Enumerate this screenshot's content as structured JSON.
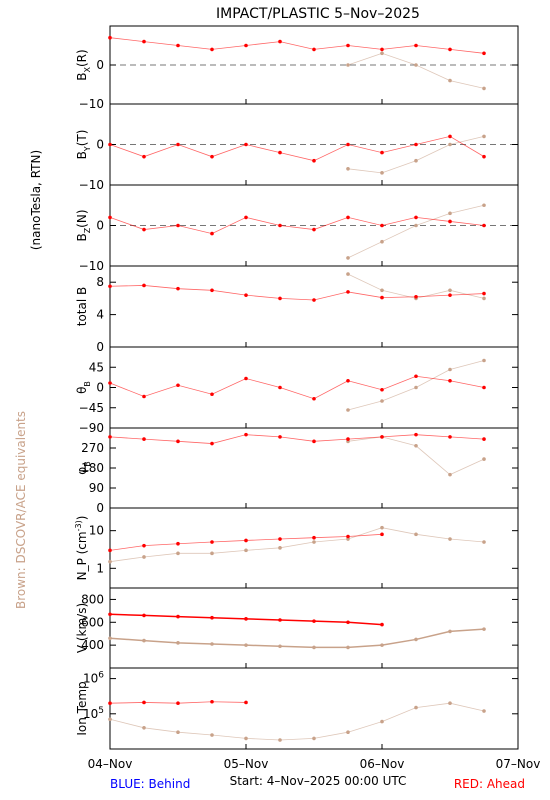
{
  "title": "IMPACT/PLASTIC     5–Nov–2025",
  "left_label": "(nanoTesla, RTN)",
  "side_note": "Brown: DSCOVR/ACE equivalents",
  "footer": {
    "behind": "BLUE: Behind",
    "start": "Start:   4–Nov–2025 00:00 UTC",
    "ahead": "RED: Ahead"
  },
  "colors": {
    "red": "#ff0000",
    "brown": "#c8a28a",
    "blue": "#0000ff",
    "grid_dash": "#777777"
  },
  "x_axis": {
    "ticks": [
      "04–Nov",
      "05–Nov",
      "06–Nov",
      "07–Nov"
    ],
    "x_days": [
      0,
      1,
      2,
      3
    ],
    "range_days": [
      0,
      3
    ]
  },
  "chart_data": [
    {
      "id": "bx",
      "type": "scatter",
      "ylabel": "B_X(R)",
      "ylabel_main": "B",
      "ylabel_sub": "X",
      "ylabel_tail": "(R)",
      "ylim": [
        -10,
        10
      ],
      "ticks": [
        "0",
        "−10"
      ],
      "tick_values": [
        0,
        -10
      ],
      "zero_line": true,
      "series": [
        {
          "name": "Ahead",
          "x": [
            0,
            0.25,
            0.5,
            0.75,
            1.0,
            1.25,
            1.5,
            1.75,
            2.0,
            2.25,
            2.5,
            2.75
          ],
          "y": [
            7,
            6,
            5,
            4,
            5,
            6,
            4,
            5,
            4,
            5,
            4,
            3
          ]
        },
        {
          "name": "DSCOVR/ACE",
          "x": [
            1.75,
            2.0,
            2.25,
            2.5,
            2.75
          ],
          "y": [
            0,
            3,
            0,
            -4,
            -6
          ]
        }
      ]
    },
    {
      "id": "by",
      "type": "scatter",
      "ylabel": "B_Y(T)",
      "ylabel_main": "B",
      "ylabel_sub": "Y",
      "ylabel_tail": "(T)",
      "ylim": [
        -10,
        10
      ],
      "ticks": [
        "0",
        "−10"
      ],
      "tick_values": [
        0,
        -10
      ],
      "zero_line": true,
      "series": [
        {
          "name": "Ahead",
          "x": [
            0,
            0.25,
            0.5,
            0.75,
            1.0,
            1.25,
            1.5,
            1.75,
            2.0,
            2.25,
            2.5,
            2.75
          ],
          "y": [
            0,
            -3,
            0,
            -3,
            0,
            -2,
            -4,
            0,
            -2,
            0,
            2,
            -3
          ]
        },
        {
          "name": "DSCOVR/ACE",
          "x": [
            1.75,
            2.0,
            2.25,
            2.5,
            2.75
          ],
          "y": [
            -6,
            -7,
            -4,
            0,
            2
          ]
        }
      ]
    },
    {
      "id": "bz",
      "type": "scatter",
      "ylabel": "B_Z(N)",
      "ylabel_main": "B",
      "ylabel_sub": "Z",
      "ylabel_tail": "(N)",
      "ylim": [
        -10,
        10
      ],
      "ticks": [
        "0",
        "−10"
      ],
      "tick_values": [
        0,
        -10
      ],
      "zero_line": true,
      "series": [
        {
          "name": "Ahead",
          "x": [
            0,
            0.25,
            0.5,
            0.75,
            1.0,
            1.25,
            1.5,
            1.75,
            2.0,
            2.25,
            2.5,
            2.75
          ],
          "y": [
            2,
            -1,
            0,
            -2,
            2,
            0,
            -1,
            2,
            0,
            2,
            1,
            0
          ]
        },
        {
          "name": "DSCOVR/ACE",
          "x": [
            1.75,
            2.0,
            2.25,
            2.5,
            2.75
          ],
          "y": [
            -8,
            -4,
            0,
            3,
            5
          ]
        }
      ]
    },
    {
      "id": "btot",
      "type": "scatter",
      "ylabel": "total B",
      "ylim": [
        0,
        10
      ],
      "ticks": [
        "8",
        "4",
        "0"
      ],
      "tick_values": [
        8,
        4,
        0
      ],
      "zero_line": false,
      "series": [
        {
          "name": "Ahead",
          "x": [
            0,
            0.25,
            0.5,
            0.75,
            1.0,
            1.25,
            1.5,
            1.75,
            2.0,
            2.25,
            2.5,
            2.75
          ],
          "y": [
            7.5,
            7.6,
            7.2,
            7.0,
            6.4,
            6.0,
            5.8,
            6.8,
            6.1,
            6.2,
            6.4,
            6.6
          ]
        },
        {
          "name": "DSCOVR/ACE",
          "x": [
            1.75,
            2.0,
            2.25,
            2.5,
            2.75
          ],
          "y": [
            9,
            7,
            6,
            7,
            6
          ]
        }
      ]
    },
    {
      "id": "theta",
      "type": "scatter",
      "ylabel": "θ_B",
      "ylabel_main": "θ",
      "ylabel_sub": "B",
      "ylabel_tail": "",
      "ylim": [
        -90,
        90
      ],
      "ticks": [
        "45",
        "0",
        "−45",
        "−90"
      ],
      "tick_values": [
        45,
        0,
        -45,
        -90
      ],
      "zero_line": false,
      "series": [
        {
          "name": "Ahead",
          "x": [
            0,
            0.25,
            0.5,
            0.75,
            1.0,
            1.25,
            1.5,
            1.75,
            2.0,
            2.25,
            2.5,
            2.75
          ],
          "y": [
            10,
            -20,
            5,
            -15,
            20,
            0,
            -25,
            15,
            -5,
            25,
            15,
            0
          ]
        },
        {
          "name": "DSCOVR/ACE",
          "x": [
            1.75,
            2.0,
            2.25,
            2.5,
            2.75
          ],
          "y": [
            -50,
            -30,
            0,
            40,
            60
          ]
        }
      ]
    },
    {
      "id": "phi",
      "type": "scatter",
      "ylabel": "φ_B",
      "ylabel_main": "φ",
      "ylabel_sub": "B",
      "ylabel_tail": "",
      "ylim": [
        0,
        360
      ],
      "ticks": [
        "270",
        "180",
        "90",
        "0"
      ],
      "tick_values": [
        270,
        180,
        90,
        0
      ],
      "zero_line": false,
      "series": [
        {
          "name": "Ahead",
          "x": [
            0,
            0.25,
            0.5,
            0.75,
            1.0,
            1.25,
            1.5,
            1.75,
            2.0,
            2.25,
            2.5,
            2.75
          ],
          "y": [
            320,
            310,
            300,
            290,
            330,
            320,
            300,
            310,
            320,
            330,
            320,
            310
          ]
        },
        {
          "name": "DSCOVR/ACE",
          "x": [
            1.75,
            2.0,
            2.25,
            2.5,
            2.75
          ],
          "y": [
            300,
            320,
            280,
            150,
            220
          ]
        }
      ]
    },
    {
      "id": "np",
      "type": "scatter",
      "ylabel": "N_P (cm^-3)",
      "yscale": "log",
      "ylim": [
        0.3,
        40
      ],
      "ticks": [
        "10",
        "1"
      ],
      "tick_values": [
        10,
        1
      ],
      "zero_line": false,
      "series": [
        {
          "name": "Ahead",
          "x": [
            0,
            0.25,
            0.5,
            0.75,
            1.0,
            1.25,
            1.5,
            1.75,
            2.0
          ],
          "y": [
            3,
            4,
            4.5,
            5,
            5.5,
            6,
            6.5,
            7,
            8
          ]
        },
        {
          "name": "DSCOVR/ACE",
          "x": [
            0,
            0.25,
            0.5,
            0.75,
            1.0,
            1.25,
            1.5,
            1.75,
            2.0,
            2.25,
            2.5,
            2.75
          ],
          "y": [
            1.5,
            2,
            2.5,
            2.5,
            3,
            3.5,
            5,
            6,
            12,
            8,
            6,
            5
          ]
        }
      ]
    },
    {
      "id": "v",
      "type": "line",
      "ylabel": "V (km/s)",
      "ylim": [
        200,
        900
      ],
      "ticks": [
        "800",
        "600",
        "400"
      ],
      "tick_values": [
        800,
        600,
        400
      ],
      "zero_line": false,
      "series": [
        {
          "name": "Ahead",
          "x": [
            0,
            0.25,
            0.5,
            0.75,
            1.0,
            1.25,
            1.5,
            1.75,
            2.0
          ],
          "y": [
            670,
            660,
            650,
            640,
            630,
            620,
            610,
            600,
            580
          ]
        },
        {
          "name": "DSCOVR/ACE",
          "x": [
            0,
            0.25,
            0.5,
            0.75,
            1.0,
            1.25,
            1.5,
            1.75,
            2.0,
            2.25,
            2.5,
            2.75
          ],
          "y": [
            460,
            440,
            420,
            410,
            400,
            390,
            380,
            380,
            400,
            450,
            520,
            540
          ]
        }
      ]
    },
    {
      "id": "temp",
      "type": "scatter",
      "ylabel": "Ion Temp",
      "yscale": "log",
      "ylim": [
        10000,
        2000000
      ],
      "ticks": [
        "10^6",
        "10^5"
      ],
      "tick_values": [
        1000000,
        100000
      ],
      "zero_line": false,
      "series": [
        {
          "name": "Ahead",
          "x": [
            0,
            0.25,
            0.5,
            0.75,
            1.0
          ],
          "y": [
            200000,
            210000,
            200000,
            220000,
            210000
          ]
        },
        {
          "name": "DSCOVR/ACE",
          "x": [
            0,
            0.25,
            0.5,
            0.75,
            1.0,
            1.25,
            1.5,
            1.75,
            2.0,
            2.25,
            2.5,
            2.75
          ],
          "y": [
            70000,
            40000,
            30000,
            25000,
            20000,
            18000,
            20000,
            30000,
            60000,
            150000,
            200000,
            120000
          ]
        }
      ]
    }
  ]
}
